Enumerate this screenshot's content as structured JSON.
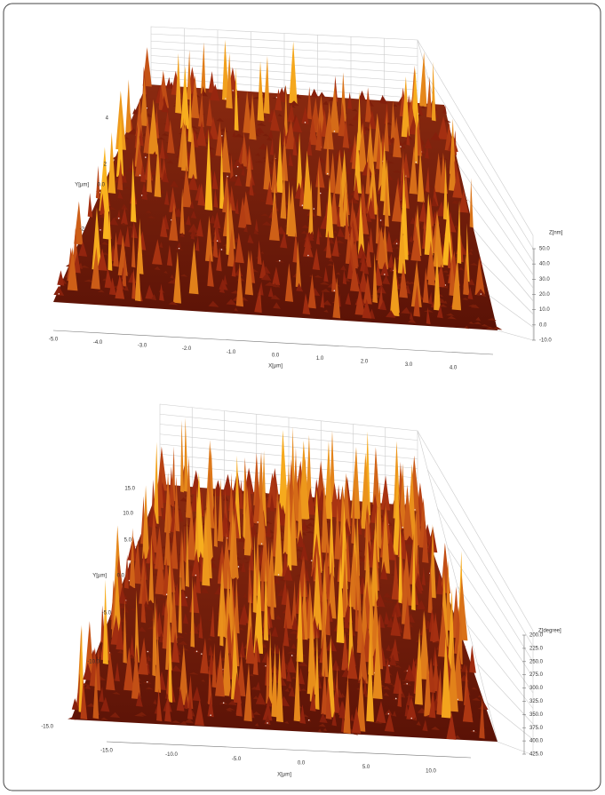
{
  "plots": [
    {
      "y_axis": {
        "label": "Y[µm]",
        "ticks": [
          "4",
          "2",
          "0.0",
          "-2"
        ]
      },
      "x_axis": {
        "label": "X[µm]",
        "ticks": [
          "-5.0",
          "-4.0",
          "-3.0",
          "-2.0",
          "-1.0",
          "0.0",
          "1.0",
          "2.0",
          "3.0",
          "4.0"
        ]
      },
      "z_axis": {
        "label": "Z[nm]",
        "ticks": [
          "50.0",
          "40.0",
          "30.0",
          "20.0",
          "10.0",
          "0.0",
          "-10.0"
        ]
      }
    },
    {
      "y_axis": {
        "label": "Y[µm]",
        "ticks": [
          "15.0",
          "10.0",
          "5.0",
          "0.0",
          "-5.0",
          "-10.0",
          "-15.0"
        ]
      },
      "x_axis": {
        "label": "X[µm]",
        "ticks": [
          "-15.0",
          "-10.0",
          "-5.0",
          "0.0",
          "5.0",
          "10.0"
        ]
      },
      "z_axis": {
        "label": "Z[degree]",
        "ticks": [
          "200.0",
          "225.0",
          "250.0",
          "275.0",
          "300.0",
          "325.0",
          "350.0",
          "375.0",
          "400.0",
          "425.0"
        ]
      }
    }
  ]
}
